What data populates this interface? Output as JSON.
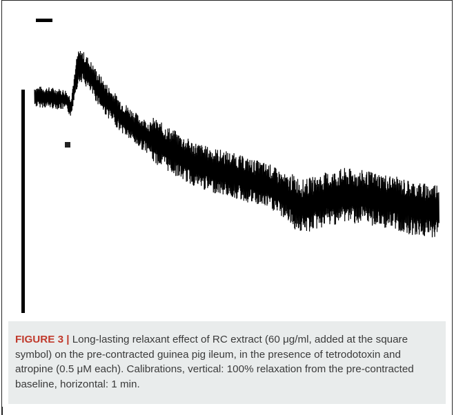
{
  "figure": {
    "label": "FIGURE 3 |",
    "caption": " Long-lasting relaxant effect of RC extract (60 μg/ml, added at the square symbol) on the pre-contracted guinea pig ileum, in the presence of tetrodotoxin and atropine (0.5 μM each). Calibrations, vertical: 100% relaxation from the pre-contracted baseline, horizontal: 1 min."
  },
  "colors": {
    "trace": "#000000",
    "caption_background": "#e9ecec",
    "figure_label": "#c0392b",
    "caption_text": "#3a3a3a"
  }
}
